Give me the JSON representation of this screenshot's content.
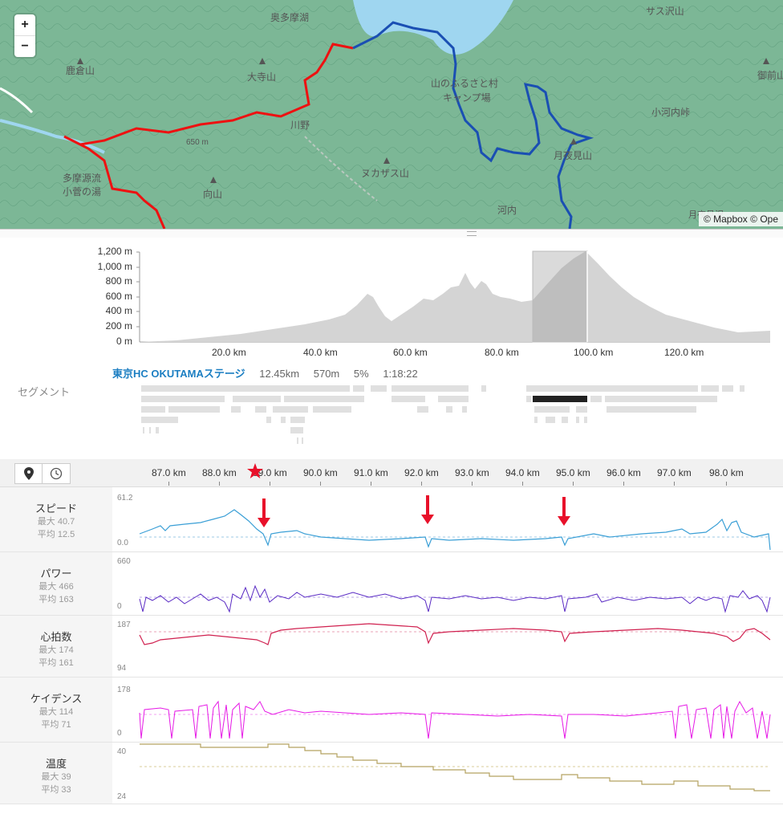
{
  "map": {
    "zoom_in": "+",
    "zoom_out": "−",
    "attribution": "© Mapbox © Ope",
    "labels": [
      "奥多摩湖",
      "鹿倉山",
      "大寺山",
      "川野",
      "650 m",
      "多摩源流",
      "小菅の湯",
      "向山",
      "ヌカザス山",
      "山のふるさと村",
      "キャンプ場",
      "小河内峠",
      "月夜見山",
      "河内",
      "サス沢山",
      "御前山",
      "月夜見沢"
    ]
  },
  "elevation": {
    "y_ticks": [
      "1,200 m",
      "1,000 m",
      "800 m",
      "600 m",
      "400 m",
      "200 m",
      "0 m"
    ],
    "x_ticks": [
      "20.0 km",
      "40.0 km",
      "60.0 km",
      "80.0 km",
      "100.0 km",
      "120.0 km"
    ]
  },
  "segment": {
    "label": "セグメント",
    "name": "東京HC OKUTAMAステージ",
    "distance": "12.45km",
    "elevation": "570m",
    "grade": "5%",
    "time": "1:18:22"
  },
  "toolbar": {
    "distance_ticks": [
      "87.0 km",
      "88.0 km",
      "89.0 km",
      "90.0 km",
      "91.0 km",
      "92.0 km",
      "93.0 km",
      "94.0 km",
      "95.0 km",
      "96.0 km",
      "97.0 km",
      "98.0 km"
    ],
    "marker_icon": "map-pin-icon",
    "clock_icon": "clock-icon"
  },
  "charts": {
    "speed": {
      "label": "スピード",
      "max": "最大 40.7",
      "avg": "平均 12.5",
      "top": "61.2",
      "bottom": "0.0",
      "color": "#3a9fd6"
    },
    "power": {
      "label": "パワー",
      "max": "最大 466",
      "avg": "平均 163",
      "top": "660",
      "bottom": "0",
      "color": "#5a2bc4"
    },
    "hr": {
      "label": "心拍数",
      "max": "最大 174",
      "avg": "平均 161",
      "top": "187",
      "bottom": "94",
      "color": "#d0204f"
    },
    "cadence": {
      "label": "ケイデンス",
      "max": "最大 114",
      "avg": "平均 71",
      "top": "178",
      "bottom": "0",
      "color": "#e619e6"
    },
    "temp": {
      "label": "温度",
      "max": "最大 39",
      "avg": "平均 33",
      "top": "40",
      "bottom": "24",
      "color": "#b5a260"
    }
  }
}
